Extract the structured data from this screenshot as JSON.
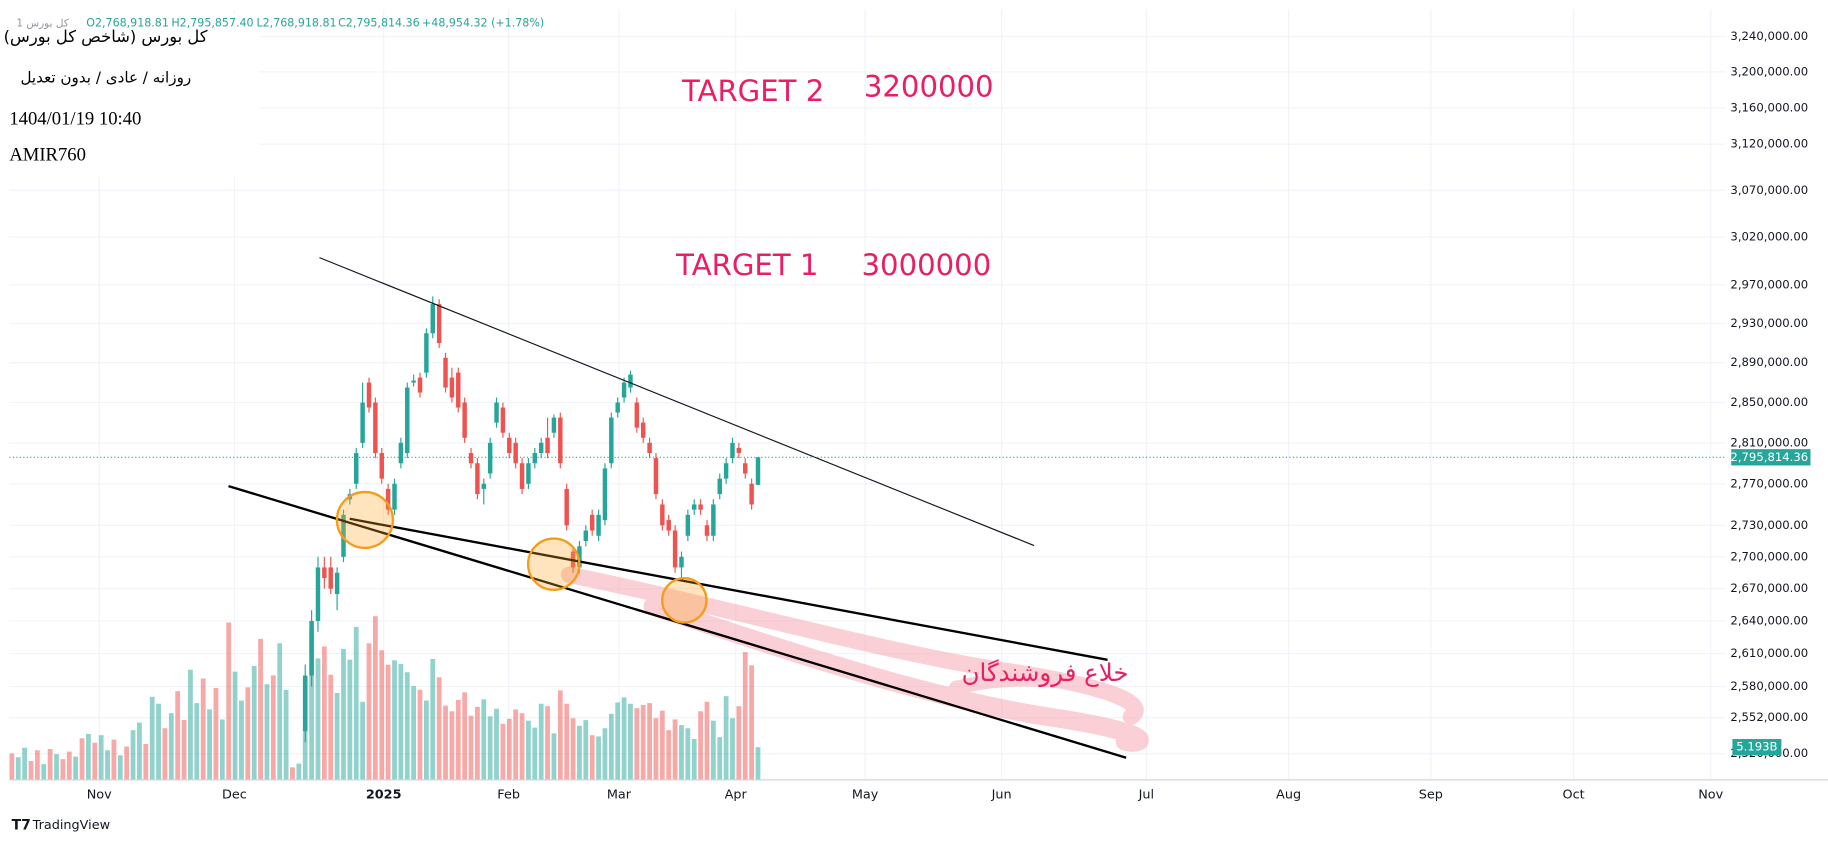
{
  "chart_data": {
    "type": "candlestick",
    "symbol": "کل بورس 1",
    "ohlc_header": [
      "O2,768,918.81",
      "H2,795,857.40",
      "L2,768,918.81",
      "C2,795,814.36",
      "+48,954.32 (+1.78%)"
    ],
    "info_lines": [
      "کل بورس (شاخص کل بورس)",
      "روزانه / عادی / بدون تعدیل",
      "1404/01/19 10:40",
      "AMIR760"
    ],
    "annotations": {
      "target2": "TARGET 2",
      "target2_value": "3200000",
      "target1": "TARGET 1",
      "target1_value": "3000000",
      "zone": "خلاع فروشندگان"
    },
    "branding": "TradingView",
    "log_scale": true,
    "grid": true,
    "up_color": "#26a69a",
    "down_color": "#ef5350",
    "xlim": [
      -0.4,
      268.7
    ],
    "xticks": [
      {
        "value": 13.7,
        "label": "Nov"
      },
      {
        "value": 34.9,
        "label": "Dec"
      },
      {
        "value": 58.3,
        "label": "2025"
      },
      {
        "value": 77.9,
        "label": "Feb"
      },
      {
        "value": 95.2,
        "label": "Mar"
      },
      {
        "value": 113.5,
        "label": "Apr"
      },
      {
        "value": 133.8,
        "label": "May"
      },
      {
        "value": 155.2,
        "label": "Jun"
      },
      {
        "value": 177.9,
        "label": "Jul"
      },
      {
        "value": 200.2,
        "label": "Aug"
      },
      {
        "value": 222.5,
        "label": "Sep"
      },
      {
        "value": 244.9,
        "label": "Oct"
      },
      {
        "value": 266.4,
        "label": "Nov"
      }
    ],
    "ylim": [
      2497000,
      3271000
    ],
    "yticks": [
      {
        "value": 3240000,
        "label": "3,240,000.00"
      },
      {
        "value": 3200000,
        "label": "3,200,000.00"
      },
      {
        "value": 3160000,
        "label": "3,160,000.00"
      },
      {
        "value": 3120000,
        "label": "3,120,000.00"
      },
      {
        "value": 3070000,
        "label": "3,070,000.00"
      },
      {
        "value": 3020000,
        "label": "3,020,000.00"
      },
      {
        "value": 2970000,
        "label": "2,970,000.00"
      },
      {
        "value": 2930000,
        "label": "2,930,000.00"
      },
      {
        "value": 2890000,
        "label": "2,890,000.00"
      },
      {
        "value": 2850000,
        "label": "2,850,000.00"
      },
      {
        "value": 2810000,
        "label": "2,810,000.00"
      },
      {
        "value": 2770000,
        "label": "2,770,000.00"
      },
      {
        "value": 2730000,
        "label": "2,730,000.00"
      },
      {
        "value": 2700000,
        "label": "2,700,000.00"
      },
      {
        "value": 2670000,
        "label": "2,670,000.00"
      },
      {
        "value": 2640000,
        "label": "2,640,000.00"
      },
      {
        "value": 2610000,
        "label": "2,610,000.00"
      },
      {
        "value": 2580000,
        "label": "2,580,000.00"
      },
      {
        "value": 2552000,
        "label": "2,552,000.00"
      },
      {
        "value": 2520000,
        "label": "2,520,000.00"
      }
    ],
    "last_price": {
      "value": 2795814.36,
      "label": "2,795,814.36"
    },
    "candles": {
      "x": [
        46,
        47,
        48,
        49,
        50,
        51,
        52,
        53,
        54,
        55,
        56,
        57,
        58,
        59,
        60,
        61,
        62,
        63,
        64,
        65,
        66,
        67,
        68,
        69,
        70,
        71,
        72,
        73,
        74,
        75,
        76,
        77,
        78,
        79,
        80,
        81,
        82,
        83,
        84,
        85,
        86,
        87,
        88,
        89,
        90,
        91,
        92,
        93,
        94,
        95,
        96,
        97,
        98,
        99,
        100,
        101,
        102,
        103,
        104,
        105,
        106,
        107,
        108,
        109,
        110,
        111,
        112,
        113,
        114,
        115,
        116,
        117
      ],
      "open": [
        2540000,
        2590000,
        2640000,
        2690000,
        2690000,
        2665000,
        2700000,
        2755000,
        2770000,
        2810000,
        2870000,
        2850000,
        2800000,
        2765000,
        2745000,
        2790000,
        2800000,
        2870000,
        2875000,
        2880000,
        2920000,
        2950000,
        2895000,
        2875000,
        2880000,
        2850000,
        2800000,
        2790000,
        2765000,
        2780000,
        2830000,
        2845000,
        2815000,
        2810000,
        2790000,
        2770000,
        2790000,
        2800000,
        2815000,
        2820000,
        2835000,
        2765000,
        2705000,
        2690000,
        2715000,
        2740000,
        2720000,
        2735000,
        2790000,
        2840000,
        2855000,
        2865000,
        2850000,
        2830000,
        2810000,
        2795000,
        2750000,
        2735000,
        2725000,
        2690000,
        2720000,
        2745000,
        2750000,
        2730000,
        2720000,
        2760000,
        2775000,
        2795000,
        2805000,
        2790000,
        2770000,
        2768918.81
      ],
      "high": [
        2600000,
        2650000,
        2700000,
        2700000,
        2700000,
        2690000,
        2745000,
        2765000,
        2805000,
        2870000,
        2875000,
        2855000,
        2805000,
        2770000,
        2775000,
        2815000,
        2870000,
        2878000,
        2880000,
        2925000,
        2958000,
        2955000,
        2900000,
        2885000,
        2885000,
        2855000,
        2805000,
        2795000,
        2775000,
        2815000,
        2855000,
        2850000,
        2820000,
        2815000,
        2795000,
        2795000,
        2805000,
        2815000,
        2835000,
        2838000,
        2840000,
        2770000,
        2710000,
        2715000,
        2730000,
        2745000,
        2745000,
        2790000,
        2840000,
        2855000,
        2875000,
        2882000,
        2855000,
        2835000,
        2815000,
        2800000,
        2755000,
        2740000,
        2730000,
        2705000,
        2745000,
        2755000,
        2755000,
        2735000,
        2755000,
        2780000,
        2795000,
        2815000,
        2810000,
        2795000,
        2775000,
        2795857.4
      ],
      "low": [
        2530000,
        2580000,
        2630000,
        2670000,
        2665000,
        2650000,
        2695000,
        2750000,
        2765000,
        2805000,
        2840000,
        2795000,
        2770000,
        2740000,
        2740000,
        2785000,
        2795000,
        2866000,
        2855000,
        2875000,
        2915000,
        2905000,
        2860000,
        2850000,
        2840000,
        2810000,
        2785000,
        2755000,
        2750000,
        2775000,
        2825000,
        2815000,
        2795000,
        2785000,
        2760000,
        2765000,
        2785000,
        2795000,
        2795000,
        2815000,
        2785000,
        2725000,
        2685000,
        2685000,
        2710000,
        2720000,
        2715000,
        2730000,
        2785000,
        2835000,
        2850000,
        2860000,
        2820000,
        2810000,
        2795000,
        2755000,
        2725000,
        2720000,
        2685000,
        2680000,
        2715000,
        2740000,
        2740000,
        2715000,
        2715000,
        2755000,
        2770000,
        2790000,
        2795000,
        2775000,
        2745000,
        2768918.81
      ],
      "close": [
        2590000,
        2640000,
        2690000,
        2680000,
        2670000,
        2685000,
        2740000,
        2760000,
        2800000,
        2850000,
        2845000,
        2800000,
        2775000,
        2745000,
        2770000,
        2810000,
        2865000,
        2872000,
        2860000,
        2920000,
        2950000,
        2910000,
        2865000,
        2855000,
        2845000,
        2815000,
        2790000,
        2760000,
        2770000,
        2810000,
        2850000,
        2820000,
        2800000,
        2790000,
        2765000,
        2790000,
        2800000,
        2810000,
        2800000,
        2835000,
        2790000,
        2730000,
        2690000,
        2710000,
        2725000,
        2725000,
        2740000,
        2785000,
        2835000,
        2850000,
        2870000,
        2878000,
        2825000,
        2815000,
        2800000,
        2760000,
        2730000,
        2725000,
        2690000,
        2700000,
        2740000,
        2750000,
        2745000,
        2720000,
        2750000,
        2775000,
        2790000,
        2810000,
        2800000,
        2780000,
        2750000,
        2795814.36
      ]
    },
    "volume": {
      "ylim": [
        0,
        30
      ],
      "last_value_label": "5.193B",
      "x": [
        0,
        1,
        2,
        3,
        4,
        5,
        6,
        7,
        8,
        9,
        10,
        11,
        12,
        13,
        14,
        15,
        16,
        17,
        18,
        19,
        20,
        21,
        22,
        23,
        24,
        25,
        26,
        27,
        28,
        29,
        30,
        31,
        32,
        33,
        34,
        35,
        36,
        37,
        38,
        39,
        40,
        41,
        42,
        43,
        44,
        45,
        46,
        47,
        48,
        49,
        50,
        51,
        52,
        53,
        54,
        55,
        56,
        57,
        58,
        59,
        60,
        61,
        62,
        63,
        64,
        65,
        66,
        67,
        68,
        69,
        70,
        71,
        72,
        73,
        74,
        75,
        76,
        77,
        78,
        79,
        80,
        81,
        82,
        83,
        84,
        85,
        86,
        87,
        88,
        89,
        90,
        91,
        92,
        93,
        94,
        95,
        96,
        97,
        98,
        99,
        100,
        101,
        102,
        103,
        104,
        105,
        106,
        107,
        108,
        109,
        110,
        111,
        112,
        113,
        114,
        115,
        116,
        117
      ],
      "values": [
        4.2,
        3.6,
        5.1,
        3.0,
        4.7,
        2.5,
        4.9,
        4.1,
        3.3,
        4.5,
        3.7,
        6.6,
        7.3,
        5.9,
        7.1,
        4.7,
        6.4,
        3.9,
        5.3,
        7.9,
        9.1,
        5.7,
        13.2,
        12.1,
        8.2,
        10.6,
        14.1,
        9.5,
        17.5,
        12.2,
        16.1,
        11.2,
        14.6,
        9.6,
        25.0,
        17.2,
        12.6,
        14.7,
        18.1,
        22.4,
        15.2,
        16.6,
        21.7,
        14.3,
        2.0,
        2.6,
        16.2,
        24.2,
        19.3,
        21.2,
        16.7,
        13.8,
        20.8,
        19.1,
        24.3,
        12.4,
        21.7,
        26.0,
        20.6,
        18.3,
        19.0,
        18.4,
        17.1,
        14.9,
        14.3,
        12.6,
        19.2,
        16.3,
        11.8,
        10.9,
        12.7,
        13.9,
        10.2,
        11.6,
        12.8,
        10.1,
        11.3,
        8.9,
        9.7,
        11.2,
        10.6,
        9.4,
        8.3,
        12.1,
        11.7,
        7.4,
        14.2,
        12.1,
        9.8,
        8.6,
        9.5,
        7.1,
        6.9,
        8.2,
        10.5,
        12.3,
        13.1,
        12.1,
        11.4,
        11.9,
        12.2,
        9.8,
        11.0,
        7.9,
        9.6,
        8.7,
        8.2,
        6.5,
        10.9,
        12.4,
        9.4,
        6.8,
        13.3,
        9.8,
        11.7,
        20.3,
        18.2,
        5.193
      ],
      "directions": [
        "down",
        "up",
        "up",
        "down",
        "down",
        "up",
        "down",
        "up",
        "down",
        "down",
        "up",
        "down",
        "up",
        "down",
        "up",
        "up",
        "down",
        "up",
        "down",
        "up",
        "up",
        "down",
        "up",
        "up",
        "down",
        "up",
        "down",
        "down",
        "up",
        "up",
        "down",
        "up",
        "down",
        "up",
        "down",
        "up",
        "up",
        "down",
        "up",
        "down",
        "up",
        "down",
        "up",
        "up",
        "down",
        "up",
        "up",
        "up",
        "up",
        "down",
        "down",
        "up",
        "up",
        "up",
        "up",
        "up",
        "down",
        "down",
        "down",
        "down",
        "up",
        "up",
        "up",
        "up",
        "down",
        "up",
        "up",
        "down",
        "down",
        "down",
        "down",
        "down",
        "down",
        "down",
        "up",
        "up",
        "up",
        "down",
        "down",
        "down",
        "down",
        "up",
        "up",
        "up",
        "down",
        "up",
        "down",
        "down",
        "down",
        "up",
        "up",
        "down",
        "up",
        "up",
        "up",
        "up",
        "up",
        "up",
        "down",
        "down",
        "down",
        "down",
        "down",
        "down",
        "down",
        "up",
        "up",
        "up",
        "down",
        "down",
        "up",
        "up",
        "up",
        "up",
        "down",
        "down",
        "down",
        "up"
      ]
    }
  }
}
